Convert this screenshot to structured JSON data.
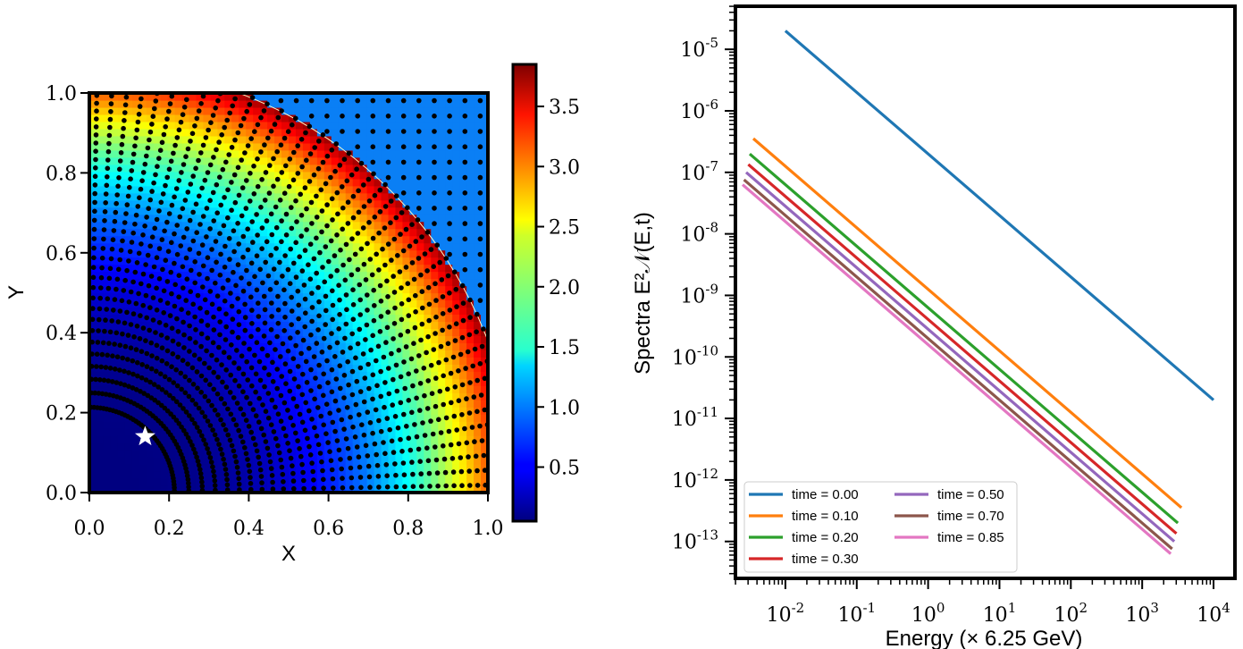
{
  "chart_data": [
    {
      "type": "heatmap",
      "title": "",
      "xlabel": "X",
      "ylabel": "Y",
      "xlim": [
        0.0,
        1.0
      ],
      "ylim": [
        0.0,
        1.0
      ],
      "x_ticks": [
        0.0,
        0.2,
        0.4,
        0.6,
        0.8,
        1.0
      ],
      "y_ticks": [
        0.0,
        0.2,
        0.4,
        0.6,
        0.8,
        1.0
      ],
      "x_tick_labels": [
        "0.0",
        "0.2",
        "0.4",
        "0.6",
        "0.8",
        "1.0"
      ],
      "y_tick_labels": [
        "0.0",
        "0.2",
        "0.4",
        "0.6",
        "0.8",
        "1.0"
      ],
      "colormap": "jet",
      "colorbar": {
        "range": [
          0.05,
          3.85
        ],
        "ticks": [
          0.5,
          1.0,
          1.5,
          2.0,
          2.5,
          3.0,
          3.5
        ],
        "tick_labels": [
          "0.5",
          "1.0",
          "1.5",
          "2.0",
          "2.5",
          "3.0",
          "3.5"
        ]
      },
      "boundary_radius": 1.07,
      "outside_region_color": "#0a7ff5",
      "marker": {
        "shape": "star",
        "color": "#ffffff",
        "x": 0.14,
        "y": 0.14
      },
      "grid": false
    },
    {
      "type": "line",
      "title": "",
      "xlabel": "Energy (× 6.25 GeV)",
      "ylabel": "Spectra E²𝒩(E,t)",
      "xscale": "log",
      "yscale": "log",
      "xlim_log10": [
        -2.7,
        4.3
      ],
      "ylim_log10": [
        -13.6,
        -4.3
      ],
      "x_tick_exponents": [
        -2,
        -1,
        0,
        1,
        2,
        3,
        4
      ],
      "y_tick_exponents": [
        -13,
        -12,
        -11,
        -10,
        -9,
        -8,
        -7,
        -6,
        -5
      ],
      "tick_base": "10",
      "legend_position": "bottom-left",
      "series": [
        {
          "name": "time = 0.00",
          "color": "#1f77b4",
          "x_log10": [
            -2.0,
            4.0
          ],
          "y_log10": [
            -4.7,
            -10.7
          ]
        },
        {
          "name": "time = 0.10",
          "color": "#ff7f0e",
          "x_log10": [
            -2.45,
            3.55
          ],
          "y_log10": [
            -6.45,
            -12.45
          ]
        },
        {
          "name": "time = 0.20",
          "color": "#2ca02c",
          "x_log10": [
            -2.5,
            3.5
          ],
          "y_log10": [
            -6.7,
            -12.7
          ]
        },
        {
          "name": "time = 0.30",
          "color": "#d62728",
          "x_log10": [
            -2.52,
            3.48
          ],
          "y_log10": [
            -6.87,
            -12.87
          ]
        },
        {
          "name": "time = 0.50",
          "color": "#9467bd",
          "x_log10": [
            -2.55,
            3.45
          ],
          "y_log10": [
            -7.0,
            -13.0
          ]
        },
        {
          "name": "time = 0.70",
          "color": "#8c564b",
          "x_log10": [
            -2.58,
            3.42
          ],
          "y_log10": [
            -7.12,
            -13.12
          ]
        },
        {
          "name": "time = 0.85",
          "color": "#e377c2",
          "x_log10": [
            -2.6,
            3.4
          ],
          "y_log10": [
            -7.2,
            -13.2
          ]
        }
      ],
      "grid": false
    }
  ]
}
